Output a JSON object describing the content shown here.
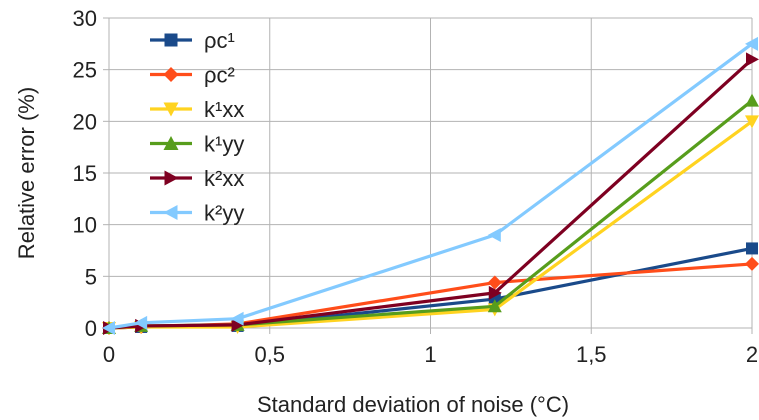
{
  "chart_data": {
    "type": "line",
    "title": "",
    "xlabel": "Standard deviation of noise (°C)",
    "ylabel": "Relative error (%)",
    "xlim": [
      0,
      2
    ],
    "ylim": [
      0,
      30
    ],
    "x_ticks": [
      0,
      0.5,
      1,
      1.5,
      2
    ],
    "x_tick_labels": [
      "0",
      "0,5",
      "1",
      "1,5",
      "2"
    ],
    "y_ticks": [
      0,
      5,
      10,
      15,
      20,
      25,
      30
    ],
    "y_tick_labels": [
      "0",
      "5",
      "10",
      "15",
      "20",
      "25",
      "30"
    ],
    "grid": true,
    "legend_position": "top-left",
    "x": [
      0,
      0.1,
      0.4,
      1.2,
      2
    ],
    "series": [
      {
        "name": "ρc¹",
        "color": "#1a4a8a",
        "marker": "square",
        "values": [
          0,
          0.1,
          0.2,
          2.8,
          7.7
        ]
      },
      {
        "name": "ρc²",
        "color": "#ff4d1a",
        "marker": "diamond",
        "values": [
          0,
          0.1,
          0.4,
          4.4,
          6.2
        ]
      },
      {
        "name": "k¹xx",
        "color": "#ffd320",
        "marker": "triangle-down",
        "values": [
          0,
          0.1,
          0.1,
          1.8,
          20
        ]
      },
      {
        "name": "k¹yy",
        "color": "#579d1c",
        "marker": "triangle-up",
        "values": [
          0,
          0.2,
          0.3,
          2.1,
          22
        ]
      },
      {
        "name": "k²xx",
        "color": "#7e0021",
        "marker": "triangle-right",
        "values": [
          0,
          0.2,
          0.3,
          3.4,
          26
        ]
      },
      {
        "name": "k²yy",
        "color": "#83caff",
        "marker": "triangle-left",
        "values": [
          0,
          0.5,
          0.9,
          9,
          27.5
        ]
      }
    ]
  }
}
